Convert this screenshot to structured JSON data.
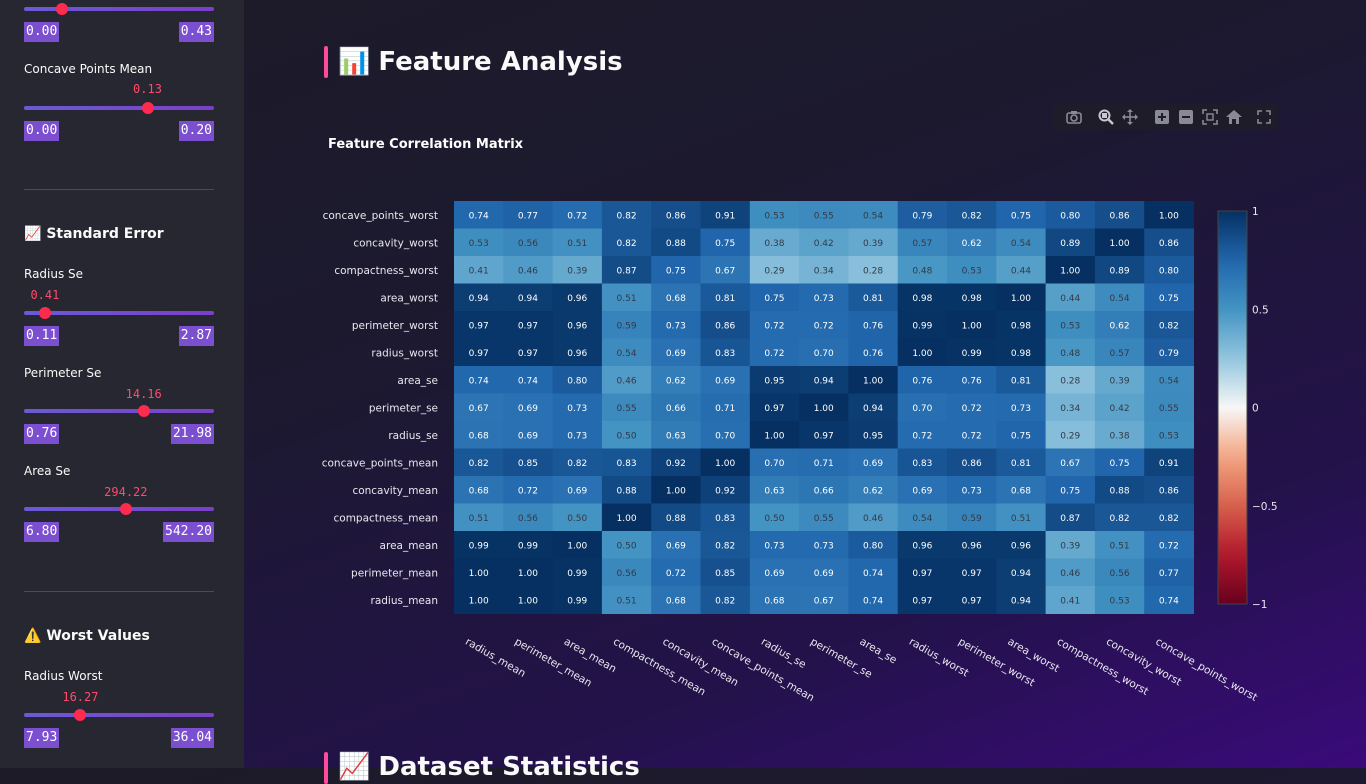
{
  "sidebar": {
    "top_slider": {
      "min": "0.00",
      "max": "0.43",
      "fraction": 0.2
    },
    "concave_points_mean": {
      "label": "Concave Points Mean",
      "value": "0.13",
      "min": "0.00",
      "max": "0.20",
      "fraction": 0.65
    },
    "standard_error": {
      "icon": "📈",
      "title": "Standard Error"
    },
    "radius_se": {
      "label": "Radius Se",
      "value": "0.41",
      "min": "0.11",
      "max": "2.87",
      "fraction": 0.11
    },
    "perimeter_se": {
      "label": "Perimeter Se",
      "value": "14.16",
      "min": "0.76",
      "max": "21.98",
      "fraction": 0.63
    },
    "area_se": {
      "label": "Area Se",
      "value": "294.22",
      "min": "6.80",
      "max": "542.20",
      "fraction": 0.536
    },
    "worst_values": {
      "icon": "⚠️",
      "title": "Worst Values"
    },
    "radius_worst": {
      "label": "Radius Worst",
      "value": "16.27",
      "min": "7.93",
      "max": "36.04",
      "fraction": 0.297
    }
  },
  "main": {
    "section_icon": "📊",
    "section_title": "Feature Analysis",
    "next_section_icon": "📈",
    "next_section_title": "Dataset Statistics"
  },
  "modebar": {
    "icons": [
      "camera-icon",
      "zoom-icon",
      "pan-icon",
      "zoom-in-icon",
      "zoom-out-icon",
      "autoscale-icon",
      "reset-axes-icon",
      "fullscreen-icon"
    ]
  },
  "chart_data": {
    "type": "heatmap",
    "title": "Feature Correlation Matrix",
    "x": [
      "radius_mean",
      "perimeter_mean",
      "area_mean",
      "compactness_mean",
      "concavity_mean",
      "concave_points_mean",
      "radius_se",
      "perimeter_se",
      "area_se",
      "radius_worst",
      "perimeter_worst",
      "area_worst",
      "compactness_worst",
      "concavity_worst",
      "concave_points_worst"
    ],
    "y_top_to_bottom": [
      "concave_points_worst",
      "concavity_worst",
      "compactness_worst",
      "area_worst",
      "perimeter_worst",
      "radius_worst",
      "area_se",
      "perimeter_se",
      "radius_se",
      "concave_points_mean",
      "concavity_mean",
      "compactness_mean",
      "area_mean",
      "perimeter_mean",
      "radius_mean"
    ],
    "z_top_to_bottom": [
      [
        0.74,
        0.77,
        0.72,
        0.82,
        0.86,
        0.91,
        0.53,
        0.55,
        0.54,
        0.79,
        0.82,
        0.75,
        0.8,
        0.86,
        1.0
      ],
      [
        0.53,
        0.56,
        0.51,
        0.82,
        0.88,
        0.75,
        0.38,
        0.42,
        0.39,
        0.57,
        0.62,
        0.54,
        0.89,
        1.0,
        0.86
      ],
      [
        0.41,
        0.46,
        0.39,
        0.87,
        0.75,
        0.67,
        0.29,
        0.34,
        0.28,
        0.48,
        0.53,
        0.44,
        1.0,
        0.89,
        0.8
      ],
      [
        0.94,
        0.94,
        0.96,
        0.51,
        0.68,
        0.81,
        0.75,
        0.73,
        0.81,
        0.98,
        0.98,
        1.0,
        0.44,
        0.54,
        0.75
      ],
      [
        0.97,
        0.97,
        0.96,
        0.59,
        0.73,
        0.86,
        0.72,
        0.72,
        0.76,
        0.99,
        1.0,
        0.98,
        0.53,
        0.62,
        0.82
      ],
      [
        0.97,
        0.97,
        0.96,
        0.54,
        0.69,
        0.83,
        0.72,
        0.7,
        0.76,
        1.0,
        0.99,
        0.98,
        0.48,
        0.57,
        0.79
      ],
      [
        0.74,
        0.74,
        0.8,
        0.46,
        0.62,
        0.69,
        0.95,
        0.94,
        1.0,
        0.76,
        0.76,
        0.81,
        0.28,
        0.39,
        0.54
      ],
      [
        0.67,
        0.69,
        0.73,
        0.55,
        0.66,
        0.71,
        0.97,
        1.0,
        0.94,
        0.7,
        0.72,
        0.73,
        0.34,
        0.42,
        0.55
      ],
      [
        0.68,
        0.69,
        0.73,
        0.5,
        0.63,
        0.7,
        1.0,
        0.97,
        0.95,
        0.72,
        0.72,
        0.75,
        0.29,
        0.38,
        0.53
      ],
      [
        0.82,
        0.85,
        0.82,
        0.83,
        0.92,
        1.0,
        0.7,
        0.71,
        0.69,
        0.83,
        0.86,
        0.81,
        0.67,
        0.75,
        0.91
      ],
      [
        0.68,
        0.72,
        0.69,
        0.88,
        1.0,
        0.92,
        0.63,
        0.66,
        0.62,
        0.69,
        0.73,
        0.68,
        0.75,
        0.88,
        0.86
      ],
      [
        0.51,
        0.56,
        0.5,
        1.0,
        0.88,
        0.83,
        0.5,
        0.55,
        0.46,
        0.54,
        0.59,
        0.51,
        0.87,
        0.82,
        0.82
      ],
      [
        0.99,
        0.99,
        1.0,
        0.5,
        0.69,
        0.82,
        0.73,
        0.73,
        0.8,
        0.96,
        0.96,
        0.96,
        0.39,
        0.51,
        0.72
      ],
      [
        1.0,
        1.0,
        0.99,
        0.56,
        0.72,
        0.85,
        0.69,
        0.69,
        0.74,
        0.97,
        0.97,
        0.94,
        0.46,
        0.56,
        0.77
      ],
      [
        1.0,
        1.0,
        0.99,
        0.51,
        0.68,
        0.82,
        0.68,
        0.67,
        0.74,
        0.97,
        0.97,
        0.94,
        0.41,
        0.53,
        0.74
      ]
    ],
    "colorscale": "RdBu",
    "zlim": [
      -1,
      1
    ],
    "colorbar_ticks": [
      "1",
      "0.5",
      "0",
      "−0.5",
      "−1"
    ],
    "colorbar_values": [
      1,
      0.5,
      0,
      -0.5,
      -1
    ]
  }
}
